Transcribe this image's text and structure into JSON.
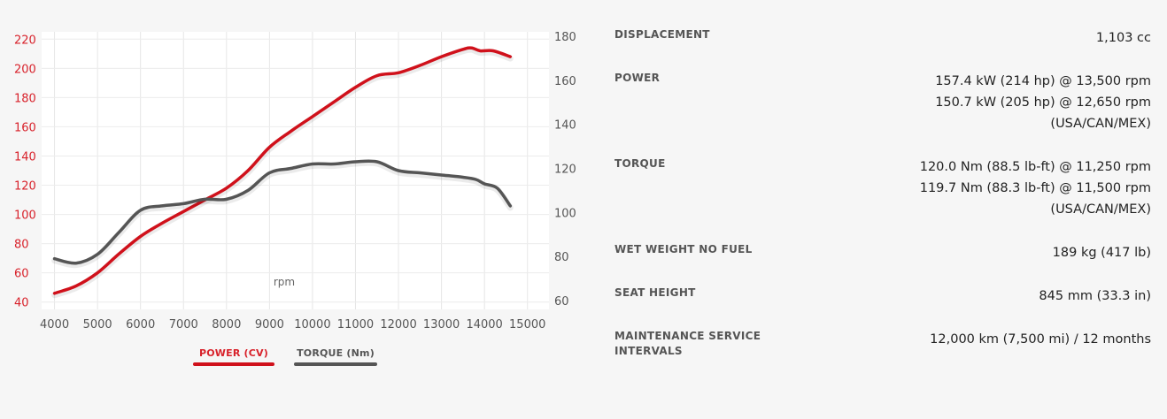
{
  "chart_data": {
    "type": "line",
    "xlabel": "rpm",
    "x_ticks": [
      "4000",
      "5000",
      "6000",
      "7000",
      "8000",
      "9000",
      "10000",
      "11000",
      "12000",
      "13000",
      "14000",
      "15000"
    ],
    "x_range": [
      3700,
      15500
    ],
    "y_left_ticks": [
      "220",
      "200",
      "180",
      "160",
      "140",
      "120",
      "100",
      "80",
      "60",
      "40"
    ],
    "y_left_range": [
      35,
      225
    ],
    "y_right_ticks": [
      "180",
      "160",
      "140",
      "120",
      "100",
      "80",
      "60"
    ],
    "y_right_range": [
      56,
      182
    ],
    "legend": [
      {
        "label": "POWER (CV)",
        "color": "#d0111b"
      },
      {
        "label": "TORQUE (Nm)",
        "color": "#555555"
      }
    ],
    "series": [
      {
        "name": "POWER (CV)",
        "axis": "left",
        "color": "#d0111b",
        "x": [
          4000,
          4500,
          5000,
          5500,
          6000,
          6500,
          7000,
          7500,
          8000,
          8500,
          9000,
          9500,
          10000,
          10500,
          11000,
          11500,
          12000,
          12500,
          13000,
          13500,
          13700,
          13900,
          14200,
          14600
        ],
        "y": [
          46,
          51,
          60,
          73,
          85,
          94,
          102,
          110,
          118,
          130,
          146,
          157,
          167,
          177,
          187,
          195,
          197,
          202,
          208,
          213,
          214,
          212,
          212,
          208
        ]
      },
      {
        "name": "TORQUE (Nm)",
        "axis": "right",
        "color": "#555555",
        "x": [
          4000,
          4500,
          5000,
          5500,
          6000,
          6500,
          7000,
          7500,
          8000,
          8500,
          9000,
          9500,
          10000,
          10500,
          11000,
          11500,
          12000,
          12500,
          13000,
          13500,
          13800,
          14000,
          14300,
          14600
        ],
        "y": [
          79,
          77,
          81,
          91,
          101,
          103,
          104,
          106,
          106,
          110,
          118,
          120,
          122,
          122,
          123,
          123,
          119,
          118,
          117,
          116,
          115,
          113,
          111,
          103
        ]
      }
    ]
  },
  "specs": [
    {
      "label": "DISPLACEMENT",
      "value": [
        "1,103 cc"
      ]
    },
    {
      "label": "POWER",
      "value": [
        "157.4 kW (214 hp) @ 13,500 rpm",
        "150.7 kW (205 hp) @ 12,650 rpm",
        "(USA/CAN/MEX)"
      ]
    },
    {
      "label": "TORQUE",
      "value": [
        "120.0 Nm (88.5 lb-ft) @ 11,250 rpm",
        "119.7 Nm (88.3 lb-ft) @ 11,500 rpm",
        "(USA/CAN/MEX)"
      ]
    },
    {
      "label": "WET WEIGHT NO FUEL",
      "value": [
        "189 kg (417 lb)"
      ]
    },
    {
      "label": "SEAT HEIGHT",
      "value": [
        "845 mm (33.3 in)"
      ]
    },
    {
      "label": "MAINTENANCE SERVICE INTERVALS",
      "value": [
        "12,000 km (7,500 mi) / 12 months"
      ]
    }
  ]
}
